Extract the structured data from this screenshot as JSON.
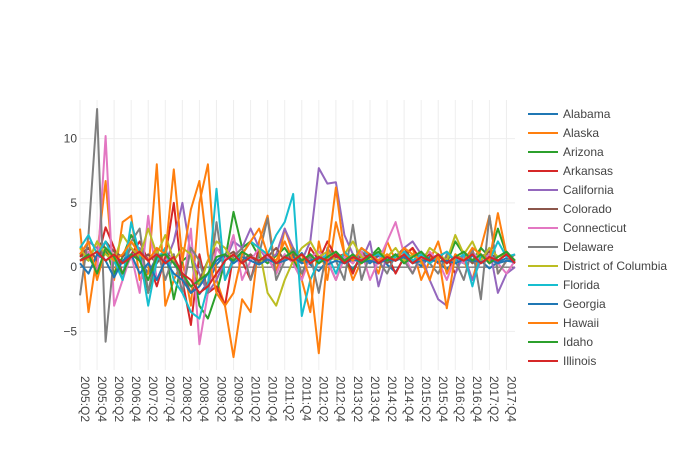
{
  "chart_data": {
    "type": "line",
    "title": "",
    "xlabel": "",
    "ylabel": "",
    "ylim": [
      -8,
      13
    ],
    "yticks": [
      -5,
      0,
      5,
      10
    ],
    "grid": true,
    "legend_position": "right",
    "x": [
      "2005:Q2",
      "2005:Q3",
      "2005:Q4",
      "2006:Q1",
      "2006:Q2",
      "2006:Q3",
      "2006:Q4",
      "2007:Q1",
      "2007:Q2",
      "2007:Q3",
      "2007:Q4",
      "2008:Q1",
      "2008:Q2",
      "2008:Q3",
      "2008:Q4",
      "2009:Q1",
      "2009:Q2",
      "2009:Q3",
      "2009:Q4",
      "2010:Q1",
      "2010:Q2",
      "2010:Q3",
      "2010:Q4",
      "2011:Q1",
      "2011:Q2",
      "2011:Q3",
      "2011:Q4",
      "2012:Q1",
      "2012:Q2",
      "2012:Q3",
      "2012:Q4",
      "2013:Q1",
      "2013:Q2",
      "2013:Q3",
      "2013:Q4",
      "2014:Q1",
      "2014:Q2",
      "2014:Q3",
      "2014:Q4",
      "2015:Q1",
      "2015:Q2",
      "2015:Q3",
      "2015:Q4",
      "2016:Q1",
      "2016:Q2",
      "2016:Q3",
      "2016:Q4",
      "2017:Q1",
      "2017:Q2",
      "2017:Q3",
      "2017:Q4",
      "2018:Q1"
    ],
    "xticks": [
      "2005:Q2",
      "2005:Q4",
      "2006:Q2",
      "2006:Q4",
      "2007:Q2",
      "2007:Q4",
      "2008:Q2",
      "2008:Q4",
      "2009:Q2",
      "2009:Q4",
      "2010:Q2",
      "2010:Q4",
      "2011:Q2",
      "2011:Q4",
      "2012:Q2",
      "2012:Q4",
      "2013:Q2",
      "2013:Q4",
      "2014:Q2",
      "2014:Q4",
      "2015:Q2",
      "2015:Q4",
      "2016:Q2",
      "2016:Q4",
      "2017:Q2",
      "2017:Q4"
    ],
    "series": [
      {
        "name": "Alabama",
        "color": "#1f77b4",
        "values": [
          0.5,
          0.8,
          -0.3,
          1.2,
          0.9,
          0.4,
          1.5,
          0.6,
          -0.5,
          0.8,
          1.1,
          0.3,
          -0.8,
          -1.5,
          -2.1,
          -1.2,
          0.2,
          0.9,
          0.5,
          1.2,
          0.8,
          0.3,
          0.6,
          -0.2,
          0.9,
          0.4,
          1.1,
          0.2,
          -0.3,
          0.5,
          0.8,
          0.4,
          -0.1,
          0.6,
          0.3,
          0.9,
          0.2,
          -0.4,
          0.7,
          0.5,
          0.1,
          0.8,
          0.4,
          -0.2,
          0.6,
          0.3,
          0.9,
          0.5,
          -0.1,
          0.4,
          0.7,
          0.3
        ]
      },
      {
        "name": "Alaska",
        "color": "#ff7f0e",
        "values": [
          3,
          -3.5,
          1,
          6.7,
          -1,
          3.5,
          4,
          -1,
          -0.5,
          8,
          -3,
          -1,
          0.5,
          -3,
          5,
          8,
          -1,
          -3,
          -7,
          -2.5,
          -3.5,
          2,
          4,
          -0.5,
          3,
          1,
          -1,
          -3.5,
          2,
          -1,
          3.5,
          1,
          -1,
          0.5,
          1,
          -0.5,
          2,
          0.5,
          1,
          1.5,
          -1,
          0.5,
          2,
          -0.5,
          1,
          0.5,
          -1,
          1.5,
          4,
          -0.5,
          0.5,
          1
        ]
      },
      {
        "name": "Arizona",
        "color": "#2ca02c",
        "values": [
          1,
          0.5,
          2,
          1.5,
          -0.5,
          0.8,
          2.5,
          1.2,
          -2,
          0.5,
          1.5,
          -2.5,
          0.5,
          1,
          -3,
          -4,
          -2,
          0.5,
          4.3,
          1.5,
          2,
          0.8,
          0.3,
          0.9,
          1.5,
          0.5,
          -0.5,
          1,
          0.3,
          0.8,
          1.2,
          0.5,
          -0.3,
          1,
          0.8,
          1.5,
          0.5,
          1,
          0.3,
          0.8,
          1.2,
          0.5,
          0.9,
          0.3,
          2,
          1,
          0.5,
          1.5,
          0.8,
          3,
          1,
          0.5
        ]
      },
      {
        "name": "Arkansas",
        "color": "#d62728",
        "values": [
          0.8,
          1.5,
          0.5,
          3.1,
          1.5,
          -0.5,
          1,
          2,
          0.5,
          -1.5,
          0.8,
          5,
          -1,
          -4.5,
          1,
          -2,
          -1.5,
          -3,
          1,
          0.5,
          -1,
          1.5,
          0.8,
          -0.5,
          1,
          0.3,
          -1,
          1.5,
          0.5,
          2,
          0.8,
          1,
          -0.5,
          1.2,
          0.5,
          0.3,
          1,
          -0.5,
          0.8,
          1.5,
          0.5,
          1,
          0.3,
          0.8,
          -0.5,
          1.2,
          0.5,
          1,
          0.3,
          0.8,
          1.2,
          0.5
        ]
      },
      {
        "name": "California",
        "color": "#9467bd",
        "values": [
          1,
          2,
          1.5,
          0.5,
          1,
          -0.5,
          0.8,
          1.5,
          0.5,
          1.2,
          0.3,
          2,
          5,
          1,
          -0.5,
          -2,
          -1,
          0.5,
          2,
          1.5,
          3,
          1.5,
          0.5,
          1,
          3,
          1.5,
          0.5,
          2,
          7.7,
          6.5,
          6.6,
          2.5,
          1,
          0.5,
          2,
          -1.5,
          1,
          0.5,
          1.5,
          2,
          1,
          -1,
          -2.5,
          -3,
          -0.5,
          1,
          -1,
          0.5,
          1.5,
          -2,
          -0.5,
          0
        ]
      },
      {
        "name": "Colorado",
        "color": "#8c564b",
        "values": [
          1,
          1.5,
          0.5,
          2,
          1.2,
          0.8,
          1.5,
          0.5,
          1,
          0.3,
          1.2,
          0.5,
          -0.5,
          -2,
          -1,
          0.5,
          1.5,
          0.8,
          1.2,
          0.5,
          1,
          0.3,
          0.8,
          1.5,
          0.5,
          1,
          0.3,
          0.8,
          1.2,
          0.5,
          -1,
          0.8,
          0.3,
          1.2,
          0.5,
          1,
          0.3,
          0.8,
          1.5,
          0.5,
          1,
          0.3,
          0.8,
          1.2,
          0.5,
          1,
          0.3,
          0.8,
          1.2,
          0.5,
          1,
          0.5
        ]
      },
      {
        "name": "Connecticut",
        "color": "#e377c2",
        "values": [
          0.5,
          1.2,
          -0.5,
          10.2,
          -3,
          -1,
          1,
          -2,
          4,
          -1,
          0.5,
          1,
          -2,
          3,
          -6,
          -2,
          1.5,
          0.5,
          2.5,
          -1,
          0.5,
          1.5,
          0.8,
          -0.5,
          1,
          0.3,
          -1,
          0.8,
          1.2,
          0.5,
          -1,
          0.8,
          0.3,
          1.2,
          -1,
          0.5,
          2,
          3.5,
          1,
          -0.5,
          0.8,
          1.2,
          0.5,
          -1,
          0.8,
          0.3,
          1.2,
          0.5,
          1,
          0.3,
          -0.5,
          0.5
        ]
      },
      {
        "name": "Delaware",
        "color": "#7f7f7f",
        "values": [
          -2.2,
          2.5,
          12.3,
          -5.8,
          1,
          -1,
          2,
          3,
          -2,
          1.5,
          -1,
          1,
          -2,
          1.5,
          0.5,
          -2,
          3.5,
          -1,
          0.8,
          1.5,
          -1,
          1,
          3.8,
          -1,
          0.5,
          1.5,
          -0.5,
          1,
          -2,
          1.5,
          0.5,
          -1,
          3.3,
          -1,
          1,
          0.5,
          -0.5,
          1,
          0.5,
          -0.5,
          1,
          0.3,
          -0.5,
          1,
          0.5,
          -1,
          1.5,
          -2.5,
          4,
          -0.5,
          0.5,
          1
        ]
      },
      {
        "name": "District of Columbia",
        "color": "#bcbd22",
        "values": [
          1.5,
          0.5,
          2,
          1,
          0.5,
          2.5,
          1.5,
          0.8,
          3,
          1,
          2.5,
          0.5,
          1.5,
          1,
          -1.5,
          0.5,
          2,
          1.5,
          0.5,
          1,
          2,
          1.5,
          -2,
          -3,
          -1,
          0.5,
          1.5,
          2,
          0.8,
          1.2,
          0.5,
          1,
          2,
          0.8,
          0.5,
          1.2,
          0.8,
          1.5,
          0.5,
          1,
          0.3,
          1.5,
          1,
          0.5,
          2.5,
          1,
          2,
          0.5,
          1.5,
          0.8,
          1,
          0.5
        ]
      },
      {
        "name": "Florida",
        "color": "#17becf",
        "values": [
          1.5,
          2.5,
          1,
          2,
          0.5,
          -1,
          3.5,
          1,
          -3,
          0.5,
          1.5,
          -1,
          -2,
          -3.5,
          -4,
          -1.5,
          6.1,
          -1,
          0.5,
          1,
          2,
          1.5,
          1,
          2.5,
          3.5,
          5.7,
          -3.8,
          -1,
          0.5,
          1,
          -0.5,
          1.2,
          0.5,
          1.5,
          0.8,
          1,
          0.5,
          0.8,
          1.2,
          0.5,
          1,
          0.3,
          0.8,
          1.2,
          0.5,
          1,
          -1.5,
          1,
          0.5,
          2,
          0.8,
          1
        ]
      },
      {
        "name": "Georgia",
        "color": "#1f77b4",
        "values": [
          0.3,
          -0.5,
          1,
          0.5,
          -0.8,
          0.5,
          1,
          -0.5,
          0.3,
          -1,
          0.5,
          -0.5,
          -1,
          -2,
          -1.5,
          -0.5,
          0.5,
          1,
          0.3,
          0.8,
          0.5,
          0.2,
          0.6,
          0.3,
          0.5,
          0.8,
          0.3,
          0.5,
          0.8,
          0.2,
          0.5,
          0.3,
          0.6,
          0.4,
          0.5,
          0.3,
          0.6,
          0.5,
          0.8,
          0.3,
          0.5,
          0.6,
          0.4,
          0.5,
          0.3,
          0.6,
          0.5,
          0.4,
          0.6,
          0.3,
          0.5,
          0.4
        ]
      },
      {
        "name": "Hawaii",
        "color": "#ff7f0e",
        "values": [
          1,
          2,
          -1,
          1.5,
          0.5,
          1,
          2,
          1,
          0.5,
          1.5,
          1,
          7.6,
          0.5,
          4.5,
          6.7,
          1,
          -2,
          -3,
          -2,
          1,
          2,
          3,
          1,
          0.5,
          2,
          0.5,
          1,
          -1,
          -6.7,
          1,
          6.2,
          1,
          0.5,
          1.5,
          1,
          0.5,
          1,
          0.5,
          1.5,
          1,
          0.5,
          -1,
          1,
          -3.2,
          1,
          0.5,
          1.5,
          1,
          0.5,
          4.2,
          1,
          0.5
        ]
      },
      {
        "name": "Idaho",
        "color": "#2ca02c",
        "values": [
          0.5,
          1,
          -0.5,
          1.5,
          0.8,
          -0.5,
          1,
          0.5,
          -1,
          0.8,
          1,
          0.3,
          -0.5,
          -1.5,
          -1,
          -0.5,
          0.8,
          1,
          0.5,
          1.2,
          0.8,
          0.5,
          1,
          0.3,
          0.8,
          1.2,
          0.5,
          1,
          0.3,
          0.8,
          1.2,
          0.5,
          1,
          0.3,
          0.8,
          1.2,
          0.5,
          1,
          0.3,
          0.8,
          1.2,
          0.5,
          1,
          0.3,
          0.8,
          1.2,
          0.5,
          1,
          0.3,
          0.8,
          1.2,
          0.5
        ]
      },
      {
        "name": "Illinois",
        "color": "#d62728",
        "values": [
          0.5,
          0.8,
          1.2,
          0.5,
          1,
          0.3,
          0.8,
          1.2,
          0.5,
          1,
          0.3,
          0.8,
          -0.5,
          -1,
          -2,
          -1.5,
          -0.5,
          0.5,
          1,
          0.3,
          0.8,
          0.5,
          1,
          0.3,
          0.8,
          0.5,
          1,
          0.3,
          0.8,
          0.5,
          1,
          0.3,
          0.8,
          0.5,
          1,
          0.3,
          0.8,
          0.5,
          1,
          0.3,
          0.8,
          0.5,
          1,
          0.3,
          0.8,
          0.5,
          1,
          0.3,
          0.8,
          0.5,
          1,
          0.3
        ]
      }
    ]
  }
}
